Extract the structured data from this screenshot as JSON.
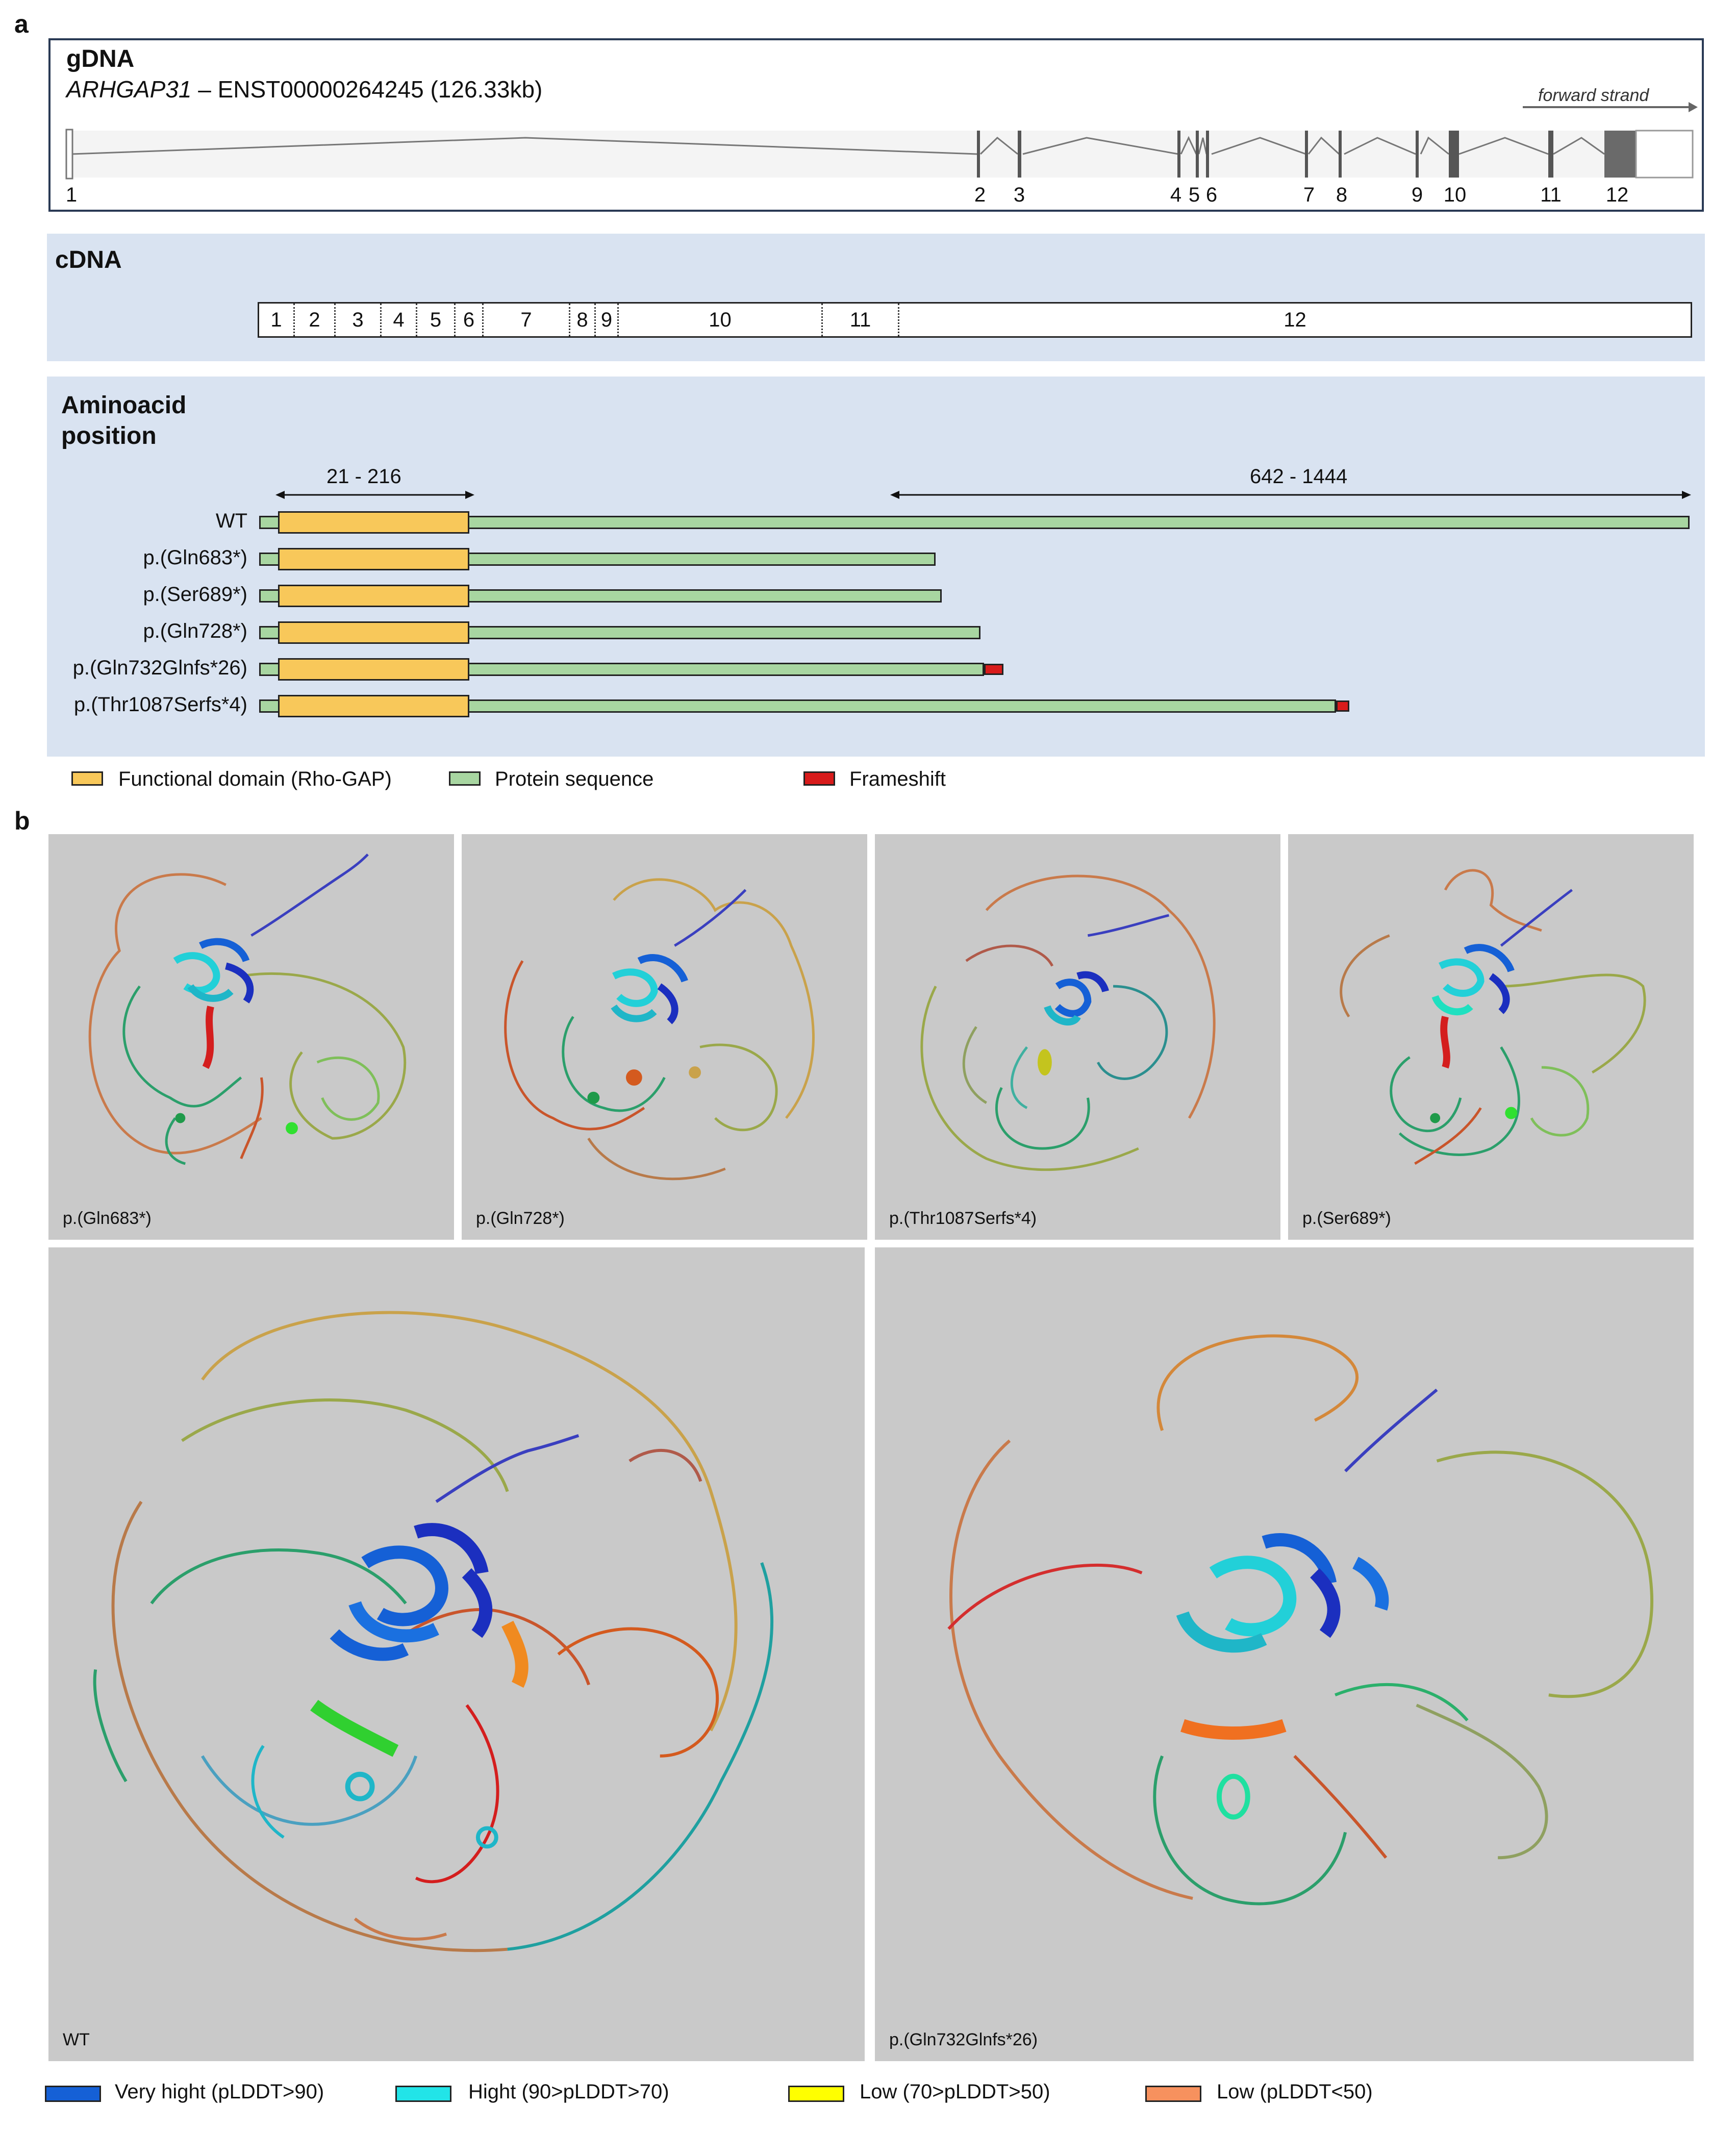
{
  "panel_a": {
    "letter": "a",
    "gdna": {
      "title": "gDNA",
      "gene": "ARHGAP31",
      "transcript": "– ENST00000264245 (126.33kb)",
      "strand": "forward strand",
      "exons": [
        "1",
        "2",
        "3",
        "4",
        "5",
        "6",
        "7",
        "8",
        "9",
        "10",
        "11",
        "12"
      ]
    },
    "cdna": {
      "title": "cDNA",
      "segments": [
        "1",
        "2",
        "3",
        "4",
        "5",
        "6",
        "7",
        "8",
        "9",
        "10",
        "11",
        "12"
      ]
    },
    "aminoacid": {
      "title_line1": "Aminoacid",
      "title_line2": "position",
      "domain_range": "21 - 216",
      "right_range": "642 - 1444",
      "variants": [
        {
          "label": "WT",
          "end": 1444,
          "frameshift": false
        },
        {
          "label": "p.(Gln683*)",
          "end": 683,
          "frameshift": false
        },
        {
          "label": "p.(Ser689*)",
          "end": 689,
          "frameshift": false
        },
        {
          "label": "p.(Gln728*)",
          "end": 728,
          "frameshift": false
        },
        {
          "label": "p.(Gln732Glnfs*26)",
          "end": 732,
          "frameshift": true
        },
        {
          "label": "p.(Thr1087Serfs*4)",
          "end": 1087,
          "frameshift": true
        }
      ]
    },
    "legend": {
      "domain": "Functional domain (Rho-GAP)",
      "sequence": "Protein sequence",
      "frameshift": "Frameshift",
      "colors": {
        "domain": "#f8c85a",
        "sequence": "#a8d6a1",
        "frameshift": "#d81b1b"
      }
    }
  },
  "panel_b": {
    "letter": "b",
    "structures": {
      "gln683": "p.(Gln683*)",
      "gln728": "p.(Gln728*)",
      "thr1087": "p.(Thr1087Serfs*4)",
      "ser689": "p.(Ser689*)",
      "wt": "WT",
      "gln732": "p.(Gln732Glnfs*26)"
    },
    "legend": {
      "very_high": "Very hight (pLDDT>90)",
      "high": "Hight (90>pLDDT>70)",
      "low": "Low (70>pLDDT>50)",
      "very_low": "Low (pLDDT<50)",
      "colors": {
        "very_high": "#1560d6",
        "high": "#22e4e8",
        "low": "#ffff00",
        "very_low": "#f7915e"
      }
    }
  }
}
